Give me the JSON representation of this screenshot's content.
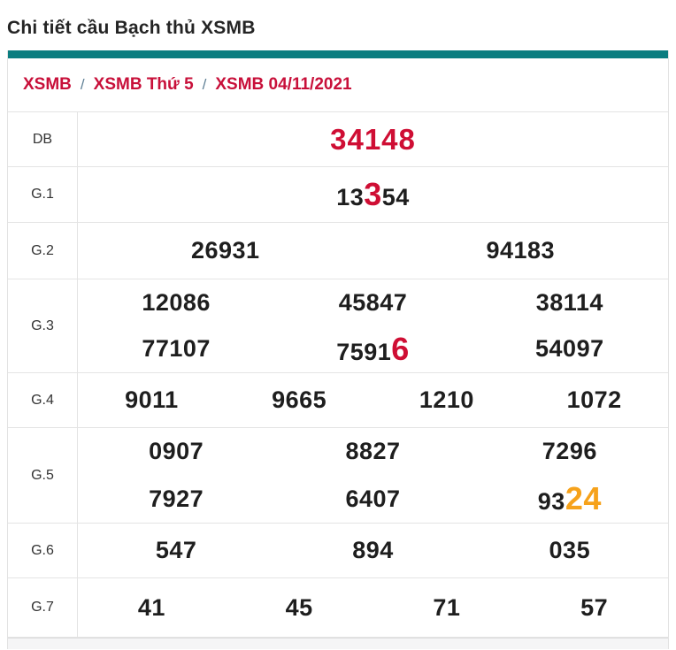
{
  "page": {
    "title": "Chi tiết cầu Bạch thủ XSMB"
  },
  "breadcrumb": {
    "separator": "/",
    "items": [
      {
        "label": "XSMB"
      },
      {
        "label": "XSMB Thứ 5"
      },
      {
        "label": "XSMB 04/11/2021"
      }
    ]
  },
  "colors": {
    "accent_teal": "#0b7d80",
    "link_red": "#c8103a",
    "prize_red": "#cf0e34",
    "highlight_orange": "#f6a21b",
    "number_dark": "#1e1e1e"
  },
  "table": {
    "rows": [
      {
        "label": "DB",
        "lines": [
          {
            "cells": [
              {
                "pre": "34148",
                "hl": "",
                "post": "",
                "hl_color": ""
              }
            ]
          }
        ]
      },
      {
        "label": "G.1",
        "lines": [
          {
            "cells": [
              {
                "pre": "13",
                "hl": "3",
                "post": "54",
                "hl_color": "red"
              }
            ]
          }
        ]
      },
      {
        "label": "G.2",
        "lines": [
          {
            "cells": [
              {
                "pre": "26931",
                "hl": "",
                "post": "",
                "hl_color": ""
              },
              {
                "pre": "94183",
                "hl": "",
                "post": "",
                "hl_color": ""
              }
            ]
          }
        ]
      },
      {
        "label": "G.3",
        "lines": [
          {
            "cells": [
              {
                "pre": "12086",
                "hl": "",
                "post": "",
                "hl_color": ""
              },
              {
                "pre": "45847",
                "hl": "",
                "post": "",
                "hl_color": ""
              },
              {
                "pre": "38114",
                "hl": "",
                "post": "",
                "hl_color": ""
              }
            ]
          },
          {
            "cells": [
              {
                "pre": "77107",
                "hl": "",
                "post": "",
                "hl_color": ""
              },
              {
                "pre": "7591",
                "hl": "6",
                "post": "",
                "hl_color": "red"
              },
              {
                "pre": "54097",
                "hl": "",
                "post": "",
                "hl_color": ""
              }
            ]
          }
        ]
      },
      {
        "label": "G.4",
        "lines": [
          {
            "cells": [
              {
                "pre": "9011",
                "hl": "",
                "post": "",
                "hl_color": ""
              },
              {
                "pre": "9665",
                "hl": "",
                "post": "",
                "hl_color": ""
              },
              {
                "pre": "1210",
                "hl": "",
                "post": "",
                "hl_color": ""
              },
              {
                "pre": "1072",
                "hl": "",
                "post": "",
                "hl_color": ""
              }
            ]
          }
        ]
      },
      {
        "label": "G.5",
        "lines": [
          {
            "cells": [
              {
                "pre": "0907",
                "hl": "",
                "post": "",
                "hl_color": ""
              },
              {
                "pre": "8827",
                "hl": "",
                "post": "",
                "hl_color": ""
              },
              {
                "pre": "7296",
                "hl": "",
                "post": "",
                "hl_color": ""
              }
            ]
          },
          {
            "cells": [
              {
                "pre": "7927",
                "hl": "",
                "post": "",
                "hl_color": ""
              },
              {
                "pre": "6407",
                "hl": "",
                "post": "",
                "hl_color": ""
              },
              {
                "pre": "93",
                "hl": "24",
                "post": "",
                "hl_color": "orange"
              }
            ]
          }
        ]
      },
      {
        "label": "G.6",
        "lines": [
          {
            "cells": [
              {
                "pre": "547",
                "hl": "",
                "post": "",
                "hl_color": ""
              },
              {
                "pre": "894",
                "hl": "",
                "post": "",
                "hl_color": ""
              },
              {
                "pre": "035",
                "hl": "",
                "post": "",
                "hl_color": ""
              }
            ]
          }
        ]
      },
      {
        "label": "G.7",
        "lines": [
          {
            "cells": [
              {
                "pre": "41",
                "hl": "",
                "post": "",
                "hl_color": ""
              },
              {
                "pre": "45",
                "hl": "",
                "post": "",
                "hl_color": ""
              },
              {
                "pre": "71",
                "hl": "",
                "post": "",
                "hl_color": ""
              },
              {
                "pre": "57",
                "hl": "",
                "post": "",
                "hl_color": ""
              }
            ]
          }
        ]
      }
    ]
  }
}
